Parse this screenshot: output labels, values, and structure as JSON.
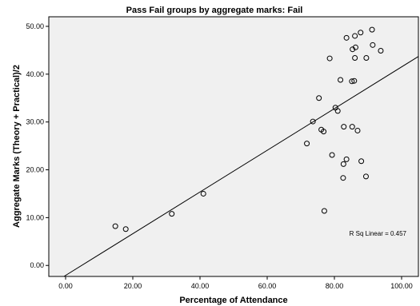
{
  "chart_data": {
    "type": "scatter",
    "title": "Pass Fail groups by aggregate marks: Fail",
    "xlabel": "Percentage of Attendance",
    "ylabel": "Aggregate Marks (Theory + Practical)/2",
    "xlim": [
      -5,
      105
    ],
    "ylim": [
      -2.3,
      52
    ],
    "x_ticks": [
      "0.00",
      "20.00",
      "40.00",
      "60.00",
      "80.00",
      "100.00"
    ],
    "y_ticks": [
      "0.00",
      "10.00",
      "20.00",
      "30.00",
      "40.00",
      "50.00"
    ],
    "grid": false,
    "plot_background": "#f0f0f0",
    "marker_color": "#000000",
    "fit_line": {
      "type": "linear",
      "x": [
        -0.5,
        105
      ],
      "y": [
        -2.3,
        43.7
      ]
    },
    "annotation": "R Sq Linear = 0.457",
    "points": [
      {
        "x": 14.8,
        "y": 8.2
      },
      {
        "x": 17.9,
        "y": 7.6
      },
      {
        "x": 31.6,
        "y": 10.8
      },
      {
        "x": 41.0,
        "y": 15.0
      },
      {
        "x": 71.8,
        "y": 25.5
      },
      {
        "x": 73.6,
        "y": 30.1
      },
      {
        "x": 75.4,
        "y": 35.0
      },
      {
        "x": 76.1,
        "y": 28.4
      },
      {
        "x": 76.8,
        "y": 28.0
      },
      {
        "x": 77.0,
        "y": 11.4
      },
      {
        "x": 78.6,
        "y": 43.3
      },
      {
        "x": 79.3,
        "y": 23.1
      },
      {
        "x": 80.3,
        "y": 33.0
      },
      {
        "x": 81.0,
        "y": 32.3
      },
      {
        "x": 81.8,
        "y": 38.8
      },
      {
        "x": 82.6,
        "y": 18.3
      },
      {
        "x": 82.7,
        "y": 21.2
      },
      {
        "x": 82.8,
        "y": 29.0
      },
      {
        "x": 83.6,
        "y": 47.6
      },
      {
        "x": 83.6,
        "y": 22.2
      },
      {
        "x": 85.2,
        "y": 38.5
      },
      {
        "x": 85.3,
        "y": 29.0
      },
      {
        "x": 85.4,
        "y": 45.2
      },
      {
        "x": 85.9,
        "y": 38.6
      },
      {
        "x": 86.1,
        "y": 48.0
      },
      {
        "x": 86.1,
        "y": 43.4
      },
      {
        "x": 86.3,
        "y": 45.6
      },
      {
        "x": 86.9,
        "y": 28.2
      },
      {
        "x": 87.8,
        "y": 48.7
      },
      {
        "x": 88.0,
        "y": 21.8
      },
      {
        "x": 89.4,
        "y": 18.6
      },
      {
        "x": 89.5,
        "y": 43.4
      },
      {
        "x": 91.2,
        "y": 49.3
      },
      {
        "x": 91.4,
        "y": 46.1
      },
      {
        "x": 93.8,
        "y": 44.9
      }
    ]
  }
}
